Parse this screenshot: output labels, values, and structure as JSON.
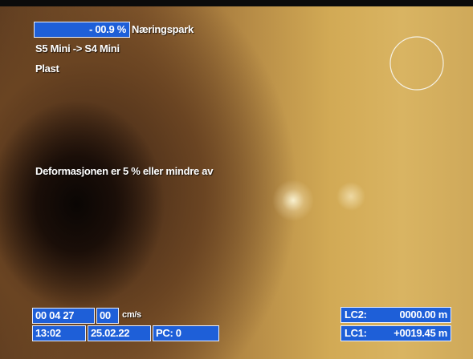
{
  "overlay": {
    "top": {
      "inclination": "- 00.9 %",
      "location": "Næringspark",
      "section": "S5 Mini -> S4 Mini",
      "material": "Plast"
    },
    "message": "Deformasjonen er 5 % eller mindre av",
    "bottom_left": {
      "counter": "00 04 27",
      "speed": "00",
      "speed_unit": "cm/s",
      "time": "13:02",
      "date": "25.02.22",
      "pc": "PC: 0"
    },
    "bottom_right": {
      "lc2_label": "LC2:",
      "lc2_value": "0000.00 m",
      "lc1_label": "LC1:",
      "lc1_value": "+0019.45 m"
    }
  }
}
